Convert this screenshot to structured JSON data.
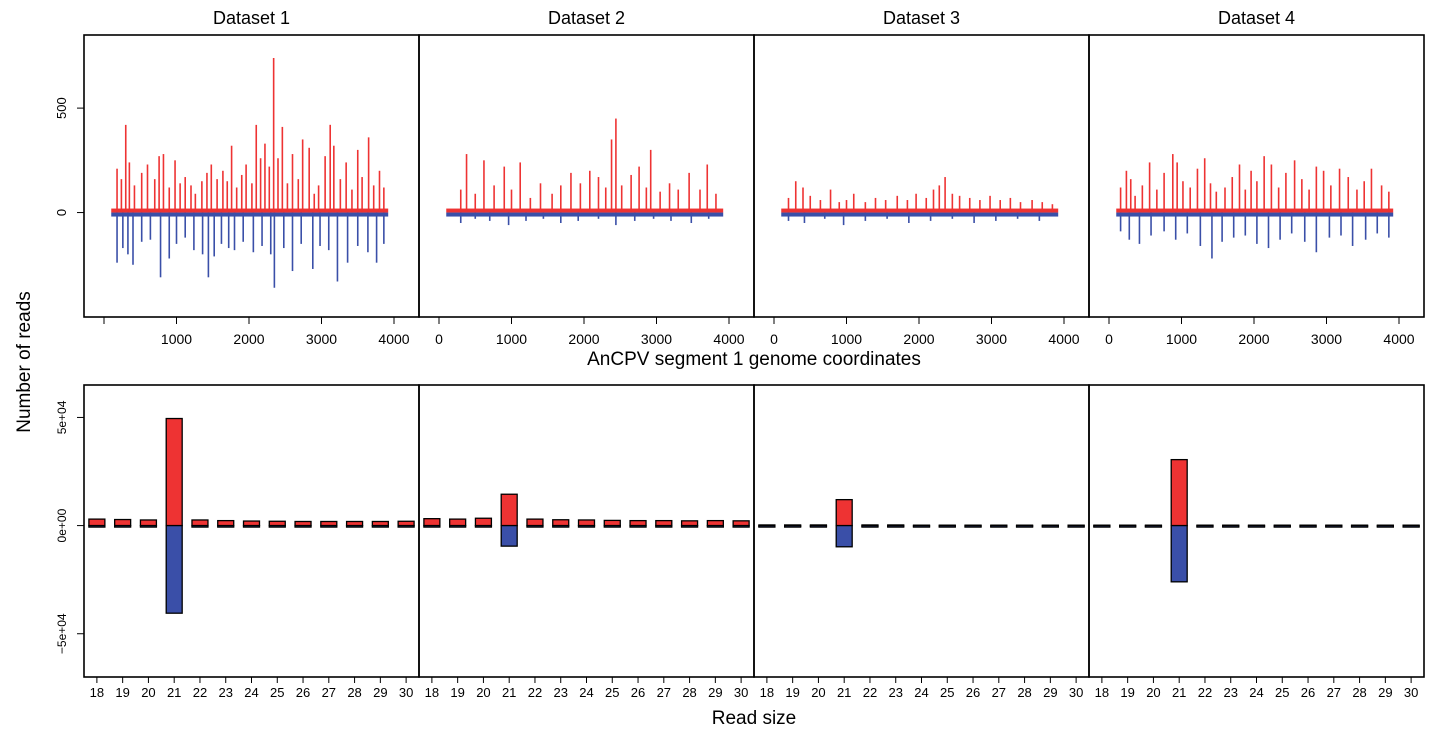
{
  "figure": {
    "ylabel": "Number of reads",
    "top_xlabel": "AnCPV segment 1 genome coordinates",
    "bottom_xlabel": "Read size"
  },
  "colors": {
    "positive": "#ee3333",
    "negative": "#3a4fa8",
    "frame": "#000000"
  },
  "chart_data": [
    {
      "type": "line",
      "row": "top",
      "xlabel": "AnCPV segment 1 genome coordinates",
      "ylabel": "Number of reads",
      "xlim": [
        0,
        4000
      ],
      "ylim": [
        -500,
        850
      ],
      "xticks": [
        1000,
        2000,
        3000,
        4000,
        0
      ],
      "xticks_panel1": [
        0,
        1000,
        2000,
        3000,
        4000
      ],
      "yticks": [
        0,
        500
      ],
      "coverage_range": [
        100,
        3920
      ],
      "panels": [
        {
          "title": "Dataset 1",
          "xtick_labels": [
            "1000",
            "2000",
            "3000",
            "4000"
          ],
          "ytick_labels": [
            "0",
            "500"
          ],
          "series": [
            {
              "name": "",
              "sign": "positive",
              "x": [
                180,
                240,
                300,
                350,
                420,
                520,
                600,
                700,
                760,
                820,
                900,
                980,
                1050,
                1120,
                1200,
                1260,
                1350,
                1420,
                1480,
                1560,
                1640,
                1700,
                1760,
                1830,
                1900,
                1960,
                2040,
                2100,
                2160,
                2220,
                2280,
                2340,
                2400,
                2460,
                2530,
                2600,
                2680,
                2740,
                2830,
                2900,
                2960,
                3050,
                3120,
                3170,
                3260,
                3340,
                3420,
                3500,
                3560,
                3650,
                3720,
                3800,
                3860
              ],
              "y": [
                210,
                160,
                420,
                240,
                130,
                190,
                230,
                160,
                270,
                280,
                120,
                250,
                140,
                170,
                130,
                90,
                150,
                190,
                230,
                160,
                200,
                150,
                320,
                120,
                180,
                230,
                140,
                420,
                260,
                330,
                220,
                740,
                260,
                410,
                140,
                280,
                160,
                350,
                310,
                90,
                130,
                270,
                420,
                320,
                160,
                240,
                110,
                300,
                170,
                360,
                130,
                200,
                120
              ]
            },
            {
              "name": "",
              "sign": "negative",
              "x": [
                180,
                260,
                330,
                400,
                520,
                640,
                780,
                900,
                1000,
                1120,
                1240,
                1360,
                1440,
                1520,
                1620,
                1720,
                1800,
                1920,
                2060,
                2180,
                2300,
                2350,
                2480,
                2600,
                2720,
                2880,
                2980,
                3100,
                3220,
                3360,
                3500,
                3640,
                3760,
                3860
              ],
              "y": [
                -240,
                -170,
                -200,
                -250,
                -140,
                -130,
                -310,
                -220,
                -150,
                -120,
                -180,
                -200,
                -310,
                -210,
                -150,
                -170,
                -180,
                -140,
                -190,
                -160,
                -200,
                -360,
                -170,
                -280,
                -150,
                -270,
                -160,
                -180,
                -330,
                -240,
                -160,
                -190,
                -240,
                -150
              ]
            }
          ]
        },
        {
          "title": "Dataset 2",
          "xtick_labels": [
            "0",
            "1000",
            "2000",
            "3000",
            "4000"
          ],
          "series": [
            {
              "name": "",
              "sign": "positive",
              "x": [
                300,
                380,
                500,
                620,
                760,
                900,
                1000,
                1120,
                1260,
                1400,
                1560,
                1680,
                1820,
                1950,
                2080,
                2200,
                2300,
                2380,
                2440,
                2520,
                2650,
                2760,
                2860,
                2920,
                3050,
                3180,
                3300,
                3450,
                3600,
                3700,
                3820
              ],
              "y": [
                110,
                280,
                90,
                250,
                130,
                220,
                110,
                240,
                70,
                140,
                90,
                130,
                190,
                140,
                200,
                170,
                120,
                350,
                450,
                130,
                180,
                220,
                120,
                300,
                100,
                140,
                110,
                190,
                110,
                230,
                90
              ]
            },
            {
              "name": "",
              "sign": "negative",
              "x": [
                300,
                500,
                700,
                960,
                1200,
                1440,
                1680,
                1920,
                2200,
                2440,
                2700,
                2960,
                3200,
                3480,
                3720
              ],
              "y": [
                -50,
                -30,
                -40,
                -60,
                -40,
                -30,
                -50,
                -40,
                -30,
                -60,
                -40,
                -30,
                -40,
                -50,
                -30
              ]
            }
          ]
        },
        {
          "title": "Dataset 3",
          "xtick_labels": [
            "0",
            "1000",
            "2000",
            "3000",
            "4000"
          ],
          "series": [
            {
              "name": "",
              "sign": "positive",
              "x": [
                200,
                300,
                400,
                500,
                640,
                780,
                900,
                1000,
                1100,
                1260,
                1400,
                1540,
                1700,
                1840,
                1960,
                2100,
                2200,
                2280,
                2360,
                2460,
                2560,
                2700,
                2840,
                2980,
                3120,
                3260,
                3400,
                3560,
                3700,
                3840
              ],
              "y": [
                70,
                150,
                120,
                80,
                60,
                110,
                50,
                60,
                90,
                50,
                70,
                60,
                80,
                60,
                90,
                70,
                110,
                130,
                170,
                90,
                80,
                70,
                60,
                80,
                60,
                70,
                50,
                60,
                50,
                40
              ]
            },
            {
              "name": "",
              "sign": "negative",
              "x": [
                200,
                420,
                700,
                960,
                1260,
                1560,
                1860,
                2160,
                2460,
                2760,
                3060,
                3360,
                3660
              ],
              "y": [
                -40,
                -50,
                -30,
                -60,
                -40,
                -30,
                -50,
                -40,
                -30,
                -50,
                -40,
                -30,
                -40
              ]
            }
          ]
        },
        {
          "title": "Dataset 4",
          "xtick_labels": [
            "0",
            "1000",
            "2000",
            "3000",
            "4000"
          ],
          "series": [
            {
              "name": "",
              "sign": "positive",
              "x": [
                160,
                240,
                300,
                360,
                460,
                560,
                660,
                760,
                880,
                940,
                1020,
                1120,
                1220,
                1320,
                1400,
                1480,
                1600,
                1700,
                1800,
                1880,
                1960,
                2040,
                2140,
                2240,
                2340,
                2440,
                2560,
                2660,
                2760,
                2860,
                2960,
                3060,
                3180,
                3300,
                3420,
                3520,
                3620,
                3760,
                3860
              ],
              "y": [
                120,
                200,
                160,
                80,
                130,
                240,
                110,
                190,
                280,
                240,
                150,
                120,
                210,
                260,
                140,
                100,
                120,
                170,
                230,
                110,
                200,
                150,
                270,
                230,
                120,
                190,
                250,
                160,
                110,
                220,
                200,
                130,
                210,
                170,
                110,
                150,
                210,
                130,
                100
              ]
            },
            {
              "name": "",
              "sign": "negative",
              "x": [
                160,
                280,
                420,
                580,
                760,
                920,
                1080,
                1260,
                1420,
                1560,
                1720,
                1880,
                2040,
                2200,
                2360,
                2520,
                2700,
                2860,
                3040,
                3200,
                3360,
                3540,
                3700,
                3860
              ],
              "y": [
                -90,
                -130,
                -150,
                -110,
                -90,
                -130,
                -100,
                -160,
                -220,
                -140,
                -120,
                -110,
                -150,
                -170,
                -130,
                -100,
                -140,
                -190,
                -120,
                -110,
                -160,
                -130,
                -100,
                -120
              ]
            }
          ]
        }
      ]
    },
    {
      "type": "bar",
      "row": "bottom",
      "xlabel": "Read size",
      "ylabel": "Number of reads",
      "categories": [
        "18",
        "19",
        "20",
        "21",
        "22",
        "23",
        "24",
        "25",
        "26",
        "27",
        "28",
        "29",
        "30"
      ],
      "ylim": [
        -70000,
        65000
      ],
      "yticks": [
        -50000,
        0,
        50000
      ],
      "ytick_labels": [
        "−5e+04",
        "0e+00",
        "5e+04"
      ],
      "panels": [
        {
          "title": "Dataset 1",
          "series": [
            {
              "name": "",
              "sign": "positive",
              "values": [
                3000,
                2800,
                2600,
                49500,
                2600,
                2300,
                2100,
                2000,
                1900,
                1900,
                1900,
                1900,
                2000
              ]
            },
            {
              "name": "",
              "sign": "negative",
              "values": [
                -500,
                -500,
                -600,
                -40500,
                -500,
                -400,
                -400,
                -400,
                -400,
                -400,
                -400,
                -400,
                -400
              ]
            }
          ]
        },
        {
          "title": "Dataset 2",
          "series": [
            {
              "name": "",
              "sign": "positive",
              "values": [
                3200,
                3000,
                3400,
                14500,
                3000,
                2700,
                2600,
                2400,
                2300,
                2300,
                2200,
                2300,
                2200
              ]
            },
            {
              "name": "",
              "sign": "negative",
              "values": [
                -400,
                -400,
                -400,
                -9500,
                -400,
                -400,
                -400,
                -400,
                -400,
                -400,
                -400,
                -400,
                -400
              ]
            }
          ]
        },
        {
          "title": "Dataset 3",
          "series": [
            {
              "name": "",
              "sign": "positive",
              "values": [
                300,
                300,
                300,
                12000,
                300,
                300,
                200,
                200,
                200,
                200,
                200,
                200,
                200
              ]
            },
            {
              "name": "",
              "sign": "negative",
              "values": [
                -200,
                -200,
                -200,
                -9800,
                -200,
                -200,
                -200,
                -200,
                -200,
                -200,
                -200,
                -200,
                -200
              ]
            }
          ]
        },
        {
          "title": "Dataset 4",
          "series": [
            {
              "name": "",
              "sign": "positive",
              "values": [
                200,
                200,
                200,
                30500,
                200,
                200,
                200,
                200,
                200,
                200,
                200,
                200,
                200
              ]
            },
            {
              "name": "",
              "sign": "negative",
              "values": [
                -200,
                -200,
                -200,
                -26000,
                -200,
                -200,
                -200,
                -200,
                -200,
                -200,
                -200,
                -200,
                -200
              ]
            }
          ]
        }
      ]
    }
  ]
}
